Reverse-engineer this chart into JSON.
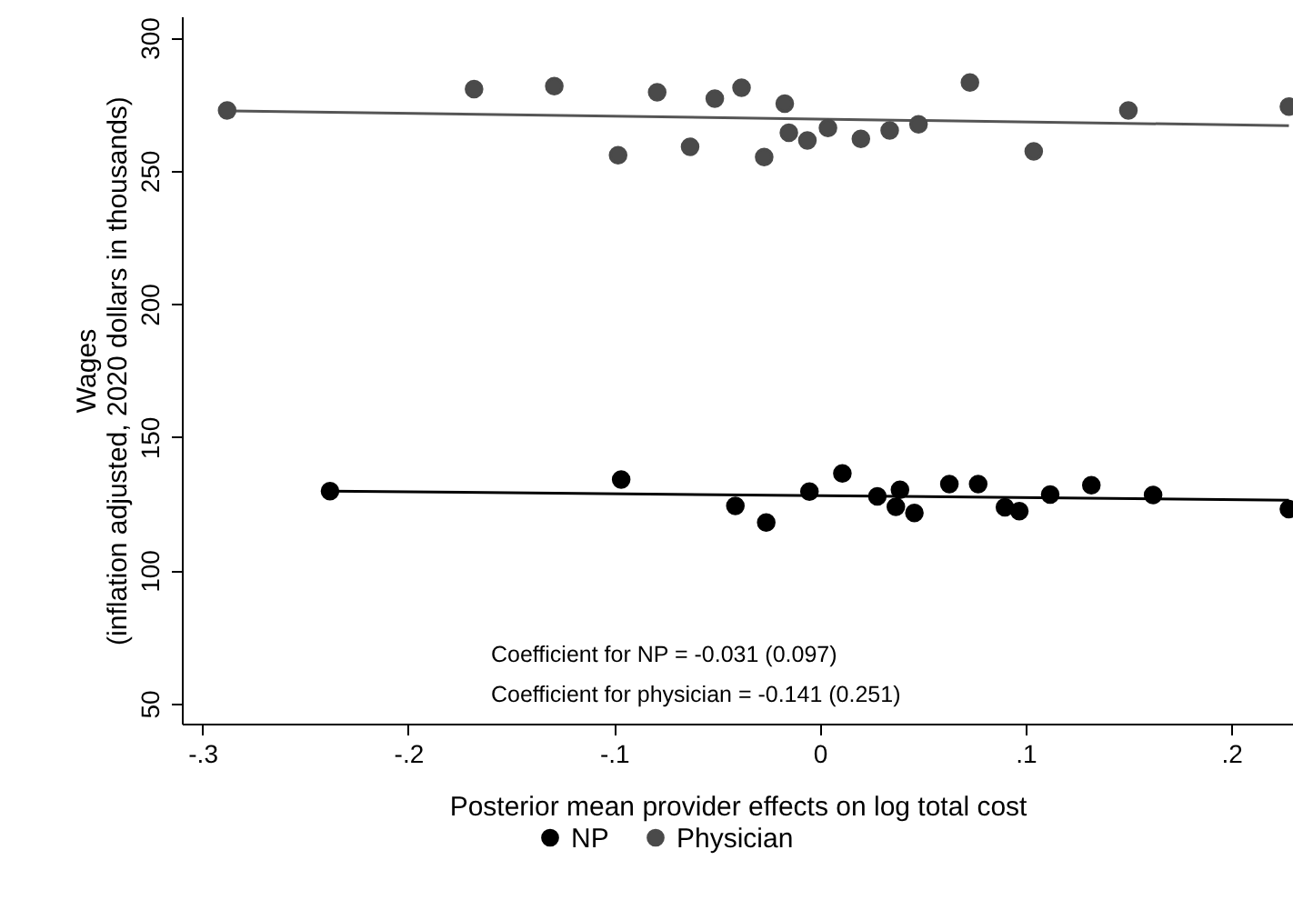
{
  "chart_data": {
    "type": "scatter",
    "xlabel": "Posterior mean provider effects on log total cost",
    "ylabel": "Wages\n(inflation adjusted, 2020 dollars in thousands)",
    "xlim": [
      -0.31,
      0.23
    ],
    "ylim": [
      42.5,
      308
    ],
    "xticks": [
      {
        "value": -0.3,
        "label": "-.3"
      },
      {
        "value": -0.2,
        "label": "-.2"
      },
      {
        "value": -0.1,
        "label": "-.1"
      },
      {
        "value": 0,
        "label": "0"
      },
      {
        "value": 0.1,
        "label": ".1"
      },
      {
        "value": 0.2,
        "label": ".2"
      }
    ],
    "yticks": [
      50,
      100,
      150,
      200,
      250,
      300
    ],
    "grid": false,
    "legend": "bottom",
    "annotations": [
      "Coefficient for NP = -0.031 (0.097)",
      "Coefficient for physician = -0.141 (0.251)"
    ],
    "series": [
      {
        "name": "NP",
        "type": "scatter",
        "color": "#000000",
        "marker": "circle",
        "x": [
          -0.238,
          -0.0965,
          -0.041,
          -0.026,
          -0.005,
          0.011,
          0.028,
          0.037,
          0.039,
          0.046,
          0.063,
          0.077,
          0.09,
          0.097,
          0.112,
          0.132,
          0.162,
          0.228
        ],
        "values": [
          129.8,
          134.1,
          124.2,
          118.0,
          129.6,
          136.4,
          127.8,
          123.9,
          130.3,
          121.6,
          132.4,
          132.4,
          123.7,
          122.3,
          128.5,
          132.0,
          128.3,
          123.0
        ]
      },
      {
        "name": "Physician",
        "type": "scatter",
        "color": "#4a4a4a",
        "marker": "circle",
        "x": [
          -0.288,
          -0.168,
          -0.129,
          -0.098,
          -0.079,
          -0.063,
          -0.051,
          -0.038,
          -0.027,
          -0.017,
          -0.015,
          -0.006,
          0.004,
          0.02,
          0.034,
          0.048,
          0.073,
          0.104,
          0.15,
          0.228
        ],
        "values": [
          272.7,
          280.7,
          281.8,
          255.9,
          279.5,
          259.0,
          277.1,
          281.2,
          255.2,
          275.2,
          264.3,
          261.4,
          266.1,
          262.0,
          265.2,
          267.5,
          283.2,
          257.3,
          272.7,
          274.1
        ]
      },
      {
        "type": "line",
        "color": "#000000",
        "x": [
          -0.238,
          0.228
        ],
        "values": [
          129.8,
          126.4
        ]
      },
      {
        "type": "line",
        "color": "#555555",
        "x": [
          -0.288,
          0.228
        ],
        "values": [
          272.5,
          267.0
        ]
      }
    ]
  }
}
